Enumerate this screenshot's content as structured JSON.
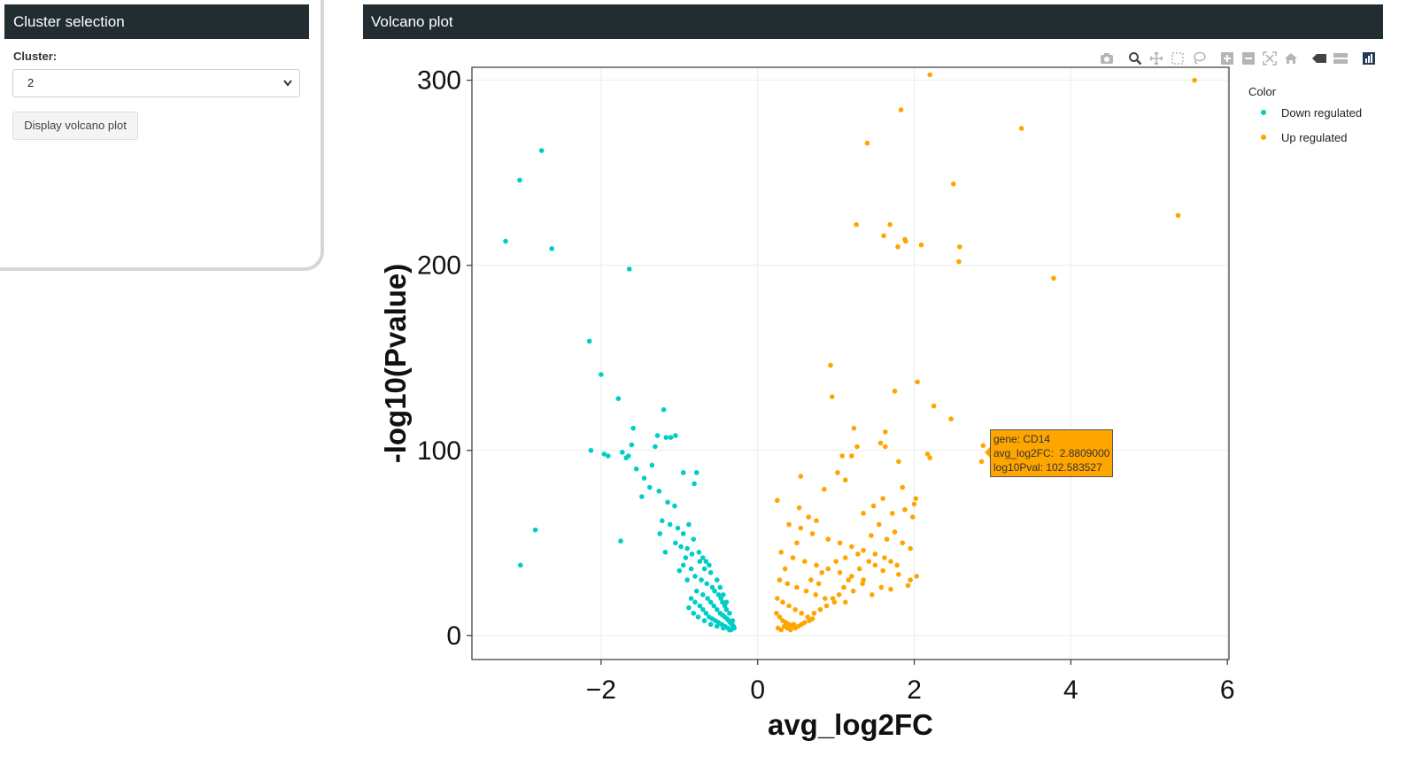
{
  "sidebar": {
    "title": "Cluster selection",
    "cluster_label": "Cluster:",
    "cluster_value": "2",
    "display_button": "Display volcano plot"
  },
  "main": {
    "title": "Volcano plot"
  },
  "modebar": {
    "icons": [
      "camera-icon",
      "zoom-icon",
      "pan-icon",
      "box-select-icon",
      "lasso-icon",
      "zoom-in-icon",
      "zoom-out-icon",
      "autoscale-icon",
      "reset-axes-icon",
      "spike-lines-icon",
      "compare-hover-icon",
      "plotly-logo-icon"
    ]
  },
  "tooltip": {
    "line1": "gene: CD14",
    "line2": "avg_log2FC:  2.8809000",
    "line3": "log10Pval: 102.583527"
  },
  "chart_data": {
    "type": "scatter",
    "title": "",
    "xlabel": "avg_log2FC",
    "ylabel": "-log10(Pvalue)",
    "xlim": [
      -3.65,
      6.02
    ],
    "ylim": [
      -13,
      307
    ],
    "xticks": [
      -2,
      0,
      2,
      4,
      6
    ],
    "yticks": [
      0,
      100,
      200,
      300
    ],
    "grid": true,
    "legend": {
      "title": "Color",
      "position": "top-right"
    },
    "series": [
      {
        "name": "Down regulated",
        "color": "#00CDC8",
        "points": [
          [
            -3.04,
            246
          ],
          [
            -2.76,
            262
          ],
          [
            -3.22,
            213
          ],
          [
            -2.63,
            209
          ],
          [
            -1.64,
            198
          ],
          [
            -2.15,
            159
          ],
          [
            -2.0,
            141
          ],
          [
            -1.78,
            128
          ],
          [
            -1.2,
            122
          ],
          [
            -1.59,
            112
          ],
          [
            -1.28,
            108
          ],
          [
            -1.05,
            108
          ],
          [
            -1.17,
            107
          ],
          [
            -1.11,
            107
          ],
          [
            -2.13,
            100
          ],
          [
            -1.96,
            98
          ],
          [
            -1.91,
            97
          ],
          [
            -1.65,
            97
          ],
          [
            -1.73,
            99
          ],
          [
            -1.61,
            103
          ],
          [
            -1.68,
            96
          ],
          [
            -1.31,
            102
          ],
          [
            -0.95,
            88
          ],
          [
            -0.78,
            88
          ],
          [
            -0.81,
            82
          ],
          [
            -2.84,
            57
          ],
          [
            -3.03,
            38
          ],
          [
            -1.75,
            51
          ],
          [
            -1.55,
            90
          ],
          [
            -1.45,
            85
          ],
          [
            -1.38,
            80
          ],
          [
            -1.26,
            78
          ],
          [
            -1.15,
            72
          ],
          [
            -1.06,
            70
          ],
          [
            -1.48,
            75
          ],
          [
            -1.35,
            92
          ],
          [
            -1.22,
            62
          ],
          [
            -1.12,
            60
          ],
          [
            -1.02,
            58
          ],
          [
            -0.95,
            55
          ],
          [
            -0.88,
            60
          ],
          [
            -0.82,
            52
          ],
          [
            -0.9,
            47
          ],
          [
            -1.05,
            50
          ],
          [
            -1.18,
            45
          ],
          [
            -1.25,
            55
          ],
          [
            -0.75,
            45
          ],
          [
            -0.7,
            42
          ],
          [
            -0.66,
            40
          ],
          [
            -0.62,
            38
          ],
          [
            -0.95,
            38
          ],
          [
            -0.85,
            36
          ],
          [
            -0.8,
            32
          ],
          [
            -0.72,
            30
          ],
          [
            -0.65,
            28
          ],
          [
            -0.58,
            26
          ],
          [
            -0.9,
            30
          ],
          [
            -1.0,
            35
          ],
          [
            -0.55,
            24
          ],
          [
            -0.5,
            22
          ],
          [
            -0.47,
            20
          ],
          [
            -0.45,
            18
          ],
          [
            -0.42,
            16
          ],
          [
            -0.4,
            14
          ],
          [
            -0.78,
            24
          ],
          [
            -0.7,
            22
          ],
          [
            -0.64,
            20
          ],
          [
            -0.6,
            18
          ],
          [
            -0.56,
            16
          ],
          [
            -0.52,
            14
          ],
          [
            -0.48,
            12
          ],
          [
            -0.45,
            11
          ],
          [
            -0.42,
            10
          ],
          [
            -0.39,
            9
          ],
          [
            -0.37,
            8
          ],
          [
            -0.35,
            7
          ],
          [
            -0.33,
            6
          ],
          [
            -0.31,
            5
          ],
          [
            -0.3,
            4
          ],
          [
            -0.34,
            3
          ],
          [
            -0.38,
            4
          ],
          [
            -0.42,
            5
          ],
          [
            -0.46,
            6
          ],
          [
            -0.5,
            7
          ],
          [
            -0.54,
            8
          ],
          [
            -0.58,
            9
          ],
          [
            -0.62,
            10
          ],
          [
            -0.66,
            12
          ],
          [
            -0.7,
            14
          ],
          [
            -0.74,
            16
          ],
          [
            -0.8,
            18
          ],
          [
            -0.85,
            20
          ],
          [
            -0.88,
            15
          ],
          [
            -0.82,
            12
          ],
          [
            -0.76,
            10
          ],
          [
            -0.68,
            8
          ],
          [
            -0.6,
            6
          ],
          [
            -0.52,
            5
          ],
          [
            -0.44,
            4
          ],
          [
            -0.36,
            3
          ],
          [
            -0.32,
            8
          ],
          [
            -0.36,
            12
          ],
          [
            -0.4,
            18
          ],
          [
            -0.44,
            22
          ],
          [
            -0.48,
            26
          ],
          [
            -0.52,
            30
          ],
          [
            -0.6,
            34
          ],
          [
            -0.68,
            36
          ],
          [
            -0.74,
            40
          ],
          [
            -0.84,
            44
          ],
          [
            -0.92,
            42
          ],
          [
            -0.98,
            48
          ]
        ]
      },
      {
        "name": "Up regulated",
        "color": "#FFA500",
        "points": [
          [
            2.2,
            303
          ],
          [
            5.58,
            300
          ],
          [
            1.83,
            284
          ],
          [
            3.37,
            274
          ],
          [
            1.4,
            266
          ],
          [
            2.5,
            244
          ],
          [
            5.37,
            227
          ],
          [
            1.26,
            222
          ],
          [
            1.69,
            222
          ],
          [
            1.61,
            216
          ],
          [
            1.88,
            214
          ],
          [
            1.89,
            213
          ],
          [
            2.09,
            211
          ],
          [
            1.79,
            210
          ],
          [
            2.58,
            210
          ],
          [
            2.57,
            202
          ],
          [
            3.78,
            193
          ],
          [
            0.93,
            146
          ],
          [
            2.04,
            137
          ],
          [
            1.75,
            132
          ],
          [
            0.95,
            129
          ],
          [
            2.25,
            124
          ],
          [
            2.47,
            117
          ],
          [
            1.63,
            110
          ],
          [
            1.23,
            112
          ],
          [
            1.2,
            97
          ],
          [
            2.88,
            102.6
          ],
          [
            2.86,
            94
          ],
          [
            2.2,
            96
          ],
          [
            2.17,
            98
          ],
          [
            1.57,
            104
          ],
          [
            1.8,
            94
          ],
          [
            1.63,
            102
          ],
          [
            1.27,
            102
          ],
          [
            1.08,
            97
          ],
          [
            0.55,
            86
          ],
          [
            0.25,
            73
          ],
          [
            0.85,
            79
          ],
          [
            0.53,
            69
          ],
          [
            2.02,
            74
          ],
          [
            2.0,
            71
          ],
          [
            0.4,
            60
          ],
          [
            0.55,
            58
          ],
          [
            0.7,
            55
          ],
          [
            0.9,
            52
          ],
          [
            1.05,
            50
          ],
          [
            1.2,
            48
          ],
          [
            1.35,
            46
          ],
          [
            1.5,
            44
          ],
          [
            1.65,
            52
          ],
          [
            1.75,
            56
          ],
          [
            1.85,
            50
          ],
          [
            1.95,
            47
          ],
          [
            0.3,
            45
          ],
          [
            0.45,
            42
          ],
          [
            0.6,
            40
          ],
          [
            0.75,
            38
          ],
          [
            0.9,
            36
          ],
          [
            1.05,
            34
          ],
          [
            1.2,
            32
          ],
          [
            1.35,
            30
          ],
          [
            1.5,
            38
          ],
          [
            1.6,
            35
          ],
          [
            1.7,
            40
          ],
          [
            1.8,
            33
          ],
          [
            0.28,
            30
          ],
          [
            0.38,
            28
          ],
          [
            0.5,
            26
          ],
          [
            0.62,
            24
          ],
          [
            0.74,
            22
          ],
          [
            0.86,
            20
          ],
          [
            0.98,
            18
          ],
          [
            1.1,
            26
          ],
          [
            1.22,
            24
          ],
          [
            1.34,
            28
          ],
          [
            1.46,
            22
          ],
          [
            1.58,
            26
          ],
          [
            0.25,
            20
          ],
          [
            0.32,
            18
          ],
          [
            0.4,
            16
          ],
          [
            0.48,
            14
          ],
          [
            0.56,
            12
          ],
          [
            0.64,
            10
          ],
          [
            0.72,
            12
          ],
          [
            0.8,
            14
          ],
          [
            0.88,
            16
          ],
          [
            0.96,
            20
          ],
          [
            1.04,
            22
          ],
          [
            1.12,
            18
          ],
          [
            0.24,
            12
          ],
          [
            0.28,
            10
          ],
          [
            0.32,
            8
          ],
          [
            0.36,
            7
          ],
          [
            0.4,
            6
          ],
          [
            0.44,
            5
          ],
          [
            0.48,
            4
          ],
          [
            0.52,
            5
          ],
          [
            0.56,
            6
          ],
          [
            0.6,
            7
          ],
          [
            0.66,
            8
          ],
          [
            0.7,
            9
          ],
          [
            0.26,
            4
          ],
          [
            0.3,
            3
          ],
          [
            0.34,
            5
          ],
          [
            0.38,
            4
          ],
          [
            0.42,
            3
          ],
          [
            0.46,
            6
          ],
          [
            1.95,
            30
          ],
          [
            1.78,
            38
          ],
          [
            1.62,
            42
          ],
          [
            1.42,
            40
          ],
          [
            1.3,
            36
          ],
          [
            1.16,
            30
          ],
          [
            2.03,
            32
          ],
          [
            1.92,
            27
          ],
          [
            1.7,
            25
          ],
          [
            0.78,
            28
          ],
          [
            0.68,
            30
          ],
          [
            0.82,
            34
          ],
          [
            1.0,
            40
          ],
          [
            1.12,
            42
          ],
          [
            1.28,
            44
          ],
          [
            1.45,
            54
          ],
          [
            1.55,
            60
          ],
          [
            1.72,
            66
          ],
          [
            1.88,
            68
          ],
          [
            1.98,
            64
          ],
          [
            1.35,
            66
          ],
          [
            1.48,
            70
          ],
          [
            1.6,
            74
          ],
          [
            1.85,
            80
          ],
          [
            1.12,
            84
          ],
          [
            1.02,
            88
          ],
          [
            0.75,
            62
          ],
          [
            0.65,
            64
          ],
          [
            0.5,
            50
          ],
          [
            0.35,
            36
          ]
        ]
      }
    ]
  }
}
